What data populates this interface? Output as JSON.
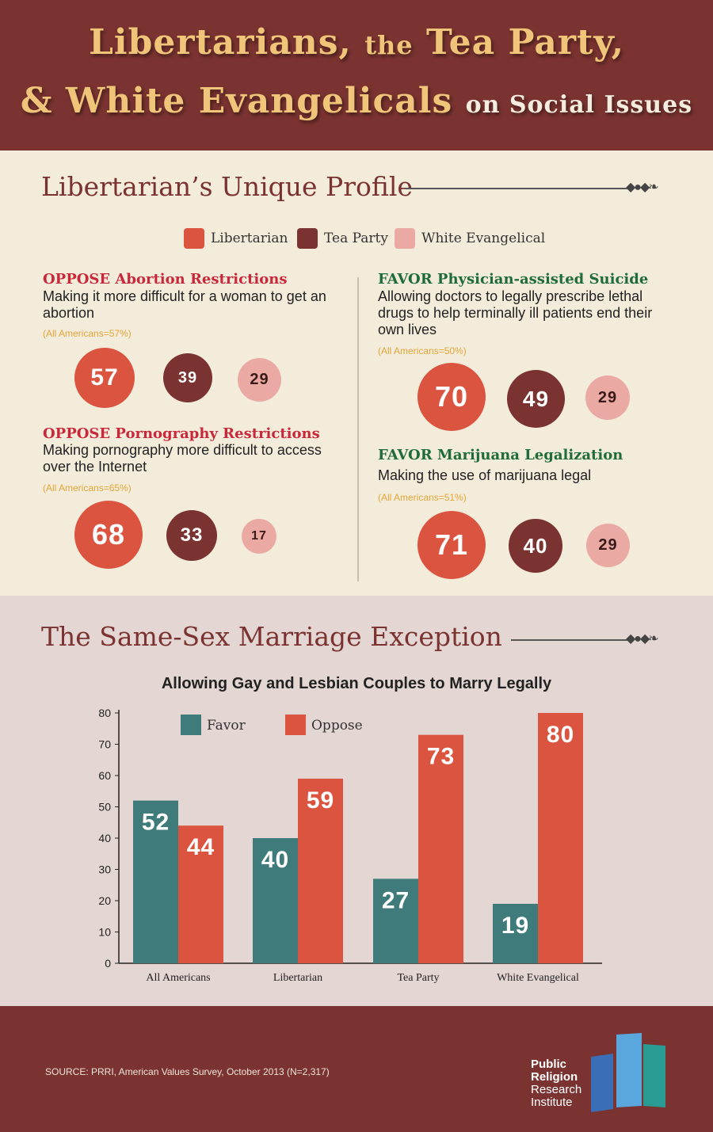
{
  "header": {
    "title_part1": "Libertarians,",
    "title_part2": "the",
    "title_part3": "Tea Party,",
    "title_part4": "& White Evangelicals",
    "title_part5": "on Social Issues"
  },
  "profile": {
    "section_title": "Libertarian’s Unique Profile",
    "legend": [
      {
        "label": "Libertarian",
        "color": "#db5440"
      },
      {
        "label": "Tea Party",
        "color": "#7a3330"
      },
      {
        "label": "White Evangelical",
        "color": "#eba9a4"
      }
    ],
    "issues": [
      {
        "stance": "OPPOSE Abortion Restrictions",
        "stance_color": "#c8283a",
        "description": "Making it more difficult for a woman to get an abortion",
        "all_americans": "(All Americans=57%)",
        "values": [
          "57",
          "39",
          "29"
        ]
      },
      {
        "stance": "OPPOSE Pornography Restrictions",
        "stance_color": "#c8283a",
        "description": "Making pornography more difficult to access over the Internet",
        "all_americans": "(All Americans=65%)",
        "values": [
          "68",
          "33",
          "17"
        ]
      },
      {
        "stance": "FAVOR Physician-assisted Suicide",
        "stance_color": "#1f6b3a",
        "description": "Allowing doctors to legally prescribe lethal drugs to help terminally ill patients end their own lives",
        "all_americans": "(All Americans=50%)",
        "values": [
          "70",
          "49",
          "29"
        ]
      },
      {
        "stance": "FAVOR Marijuana Legalization",
        "stance_color": "#1f6b3a",
        "description": "Making the use of marijuana legal",
        "all_americans": "(All Americans=51%)",
        "values": [
          "71",
          "40",
          "29"
        ]
      }
    ]
  },
  "marriage": {
    "section_title": "The Same-Sex Marriage Exception"
  },
  "chart_data": {
    "type": "bar",
    "title": "Allowing Gay and Lesbian Couples to Marry Legally",
    "categories": [
      "All Americans",
      "Libertarian",
      "Tea Party",
      "White Evangelical"
    ],
    "series": [
      {
        "name": "Favor",
        "color": "#3f7b7b",
        "values": [
          52,
          40,
          27,
          19
        ]
      },
      {
        "name": "Oppose",
        "color": "#db5440",
        "values": [
          44,
          59,
          73,
          80
        ]
      }
    ],
    "ylim": [
      0,
      80
    ],
    "yticks": [
      0,
      10,
      20,
      30,
      40,
      50,
      60,
      70,
      80
    ],
    "legend_position": "top-left",
    "grid": false
  },
  "footer": {
    "source": "SOURCE: PRRI, American Values Survey, October 2013 (N=2,317)",
    "logo_line1": "Public",
    "logo_line2": "Religion",
    "logo_line3": "Research",
    "logo_line4": "Institute"
  }
}
